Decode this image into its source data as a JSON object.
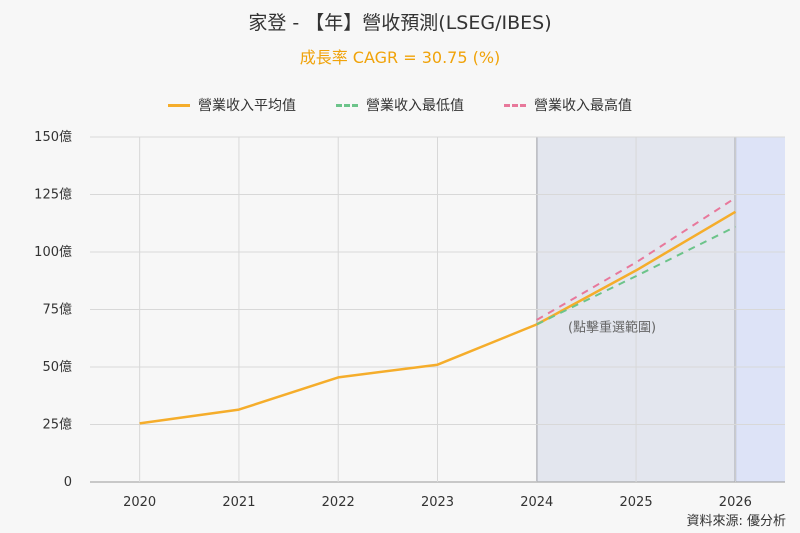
{
  "title": "家登 - 【年】營收預測(LSEG/IBES)",
  "subtitle": "成長率 CAGR = 30.75 (%)",
  "source": "資料來源: 優分析",
  "zoom_note": "(點擊重選範圍)",
  "colors": {
    "avg": "#f5ad2b",
    "low": "#6cc48a",
    "high": "#e8789b",
    "forecast_band": "#e3e6ee",
    "future_band": "#dde3f7"
  },
  "chart_data": {
    "type": "line",
    "x": [
      2020,
      2021,
      2022,
      2023,
      2024,
      2025,
      2026
    ],
    "y_ticks": [
      "0",
      "25億",
      "50億",
      "75億",
      "100億",
      "125億",
      "150億"
    ],
    "ylim": [
      0,
      150
    ],
    "grid": true,
    "legend_position": "top-center",
    "series": [
      {
        "name": "營業收入平均值",
        "style": "solid",
        "x": [
          2020,
          2021,
          2022,
          2023,
          2024,
          2025,
          2026
        ],
        "values": [
          25.5,
          31.5,
          45.5,
          51.0,
          68.5,
          92.0,
          117.5
        ]
      },
      {
        "name": "營業收入最低值",
        "style": "dashed",
        "x": [
          2024,
          2025,
          2026
        ],
        "values": [
          68.5,
          89.5,
          111.0
        ]
      },
      {
        "name": "營業收入最高值",
        "style": "dashed",
        "x": [
          2024,
          2025,
          2026
        ],
        "values": [
          70.5,
          95.5,
          123.5
        ]
      }
    ],
    "shaded_ranges": [
      [
        2024,
        2026
      ]
    ]
  }
}
